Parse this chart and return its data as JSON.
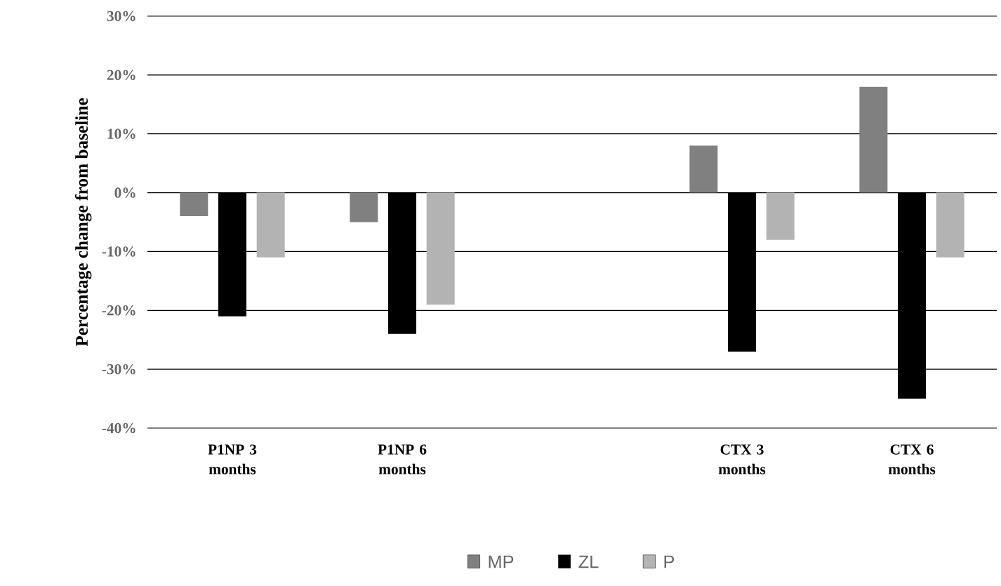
{
  "chart_data": {
    "type": "bar",
    "ylabel": "Percentage change from baseline",
    "categories": [
      "P1NP 3 months",
      "P1NP 6 months",
      null,
      "CTX 3 months",
      "CTX 6 months"
    ],
    "series": [
      {
        "name": "MP",
        "color": "#808080",
        "values": [
          -4,
          -5,
          null,
          8,
          18
        ]
      },
      {
        "name": "ZL",
        "color": "#000000",
        "values": [
          -21,
          -24,
          null,
          -27,
          -35
        ]
      },
      {
        "name": "P",
        "color": "#b3b3b3",
        "values": [
          -11,
          -19,
          null,
          -8,
          -11
        ]
      }
    ],
    "ylim": [
      -40,
      30
    ],
    "yticks": [
      {
        "value": -40,
        "label": "-40%"
      },
      {
        "value": -30,
        "label": "-30%"
      },
      {
        "value": -20,
        "label": "-20%"
      },
      {
        "value": -10,
        "label": "-10%"
      },
      {
        "value": 0,
        "label": "0%"
      },
      {
        "value": 10,
        "label": "10%"
      },
      {
        "value": 20,
        "label": "20%"
      },
      {
        "value": 30,
        "label": "30%"
      }
    ],
    "grid": "y",
    "legend": "bottom"
  }
}
